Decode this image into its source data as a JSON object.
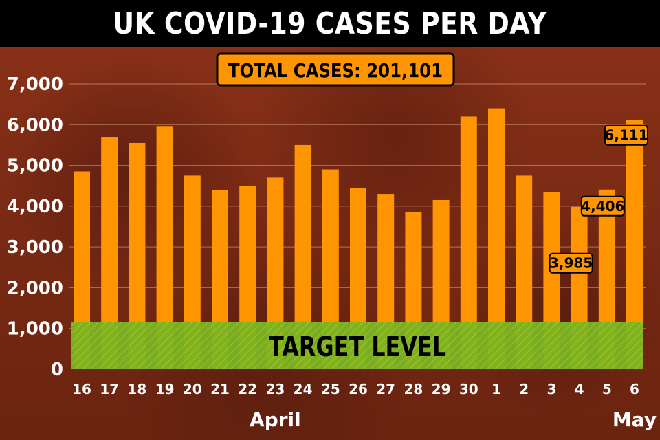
{
  "header": {
    "title": "UK COVID-19 CASES PER DAY"
  },
  "chart_data": {
    "type": "bar",
    "title": "UK COVID-19 CASES PER DAY",
    "subtitle": "TOTAL CASES: 201,101",
    "categories": [
      "16",
      "17",
      "18",
      "19",
      "20",
      "21",
      "22",
      "23",
      "24",
      "25",
      "26",
      "27",
      "28",
      "29",
      "30",
      "1",
      "2",
      "3",
      "4",
      "5",
      "6"
    ],
    "values": [
      4850,
      5700,
      5550,
      5950,
      4750,
      4400,
      4500,
      4700,
      5500,
      4900,
      4450,
      4300,
      3850,
      4150,
      6200,
      6400,
      4750,
      4350,
      3985,
      4406,
      6111
    ],
    "data_labels": [
      {
        "category": "4",
        "text": "3,985"
      },
      {
        "category": "5",
        "text": "4,406"
      },
      {
        "category": "6",
        "text": "6,111"
      }
    ],
    "month_labels": [
      {
        "text": "April",
        "start": "16",
        "end": "30"
      },
      {
        "text": "May",
        "start": "6",
        "end": "6"
      }
    ],
    "ylim": [
      0,
      7000
    ],
    "yticks": [
      0,
      1000,
      2000,
      3000,
      4000,
      5000,
      6000,
      7000
    ],
    "ytick_labels": [
      "0",
      "1,000",
      "2,000",
      "3,000",
      "4,000",
      "5,000",
      "6,000",
      "7,000"
    ],
    "xlabel": "",
    "ylabel": "",
    "grid": true,
    "target_band": {
      "label": "TARGET LEVEL",
      "from": 0,
      "to": 1150,
      "color": "#7ab320"
    },
    "colors": {
      "bar": "#ff9500",
      "label_bg": "#ff9500",
      "title_bg": "#000000",
      "background": "#7a2a14"
    }
  }
}
